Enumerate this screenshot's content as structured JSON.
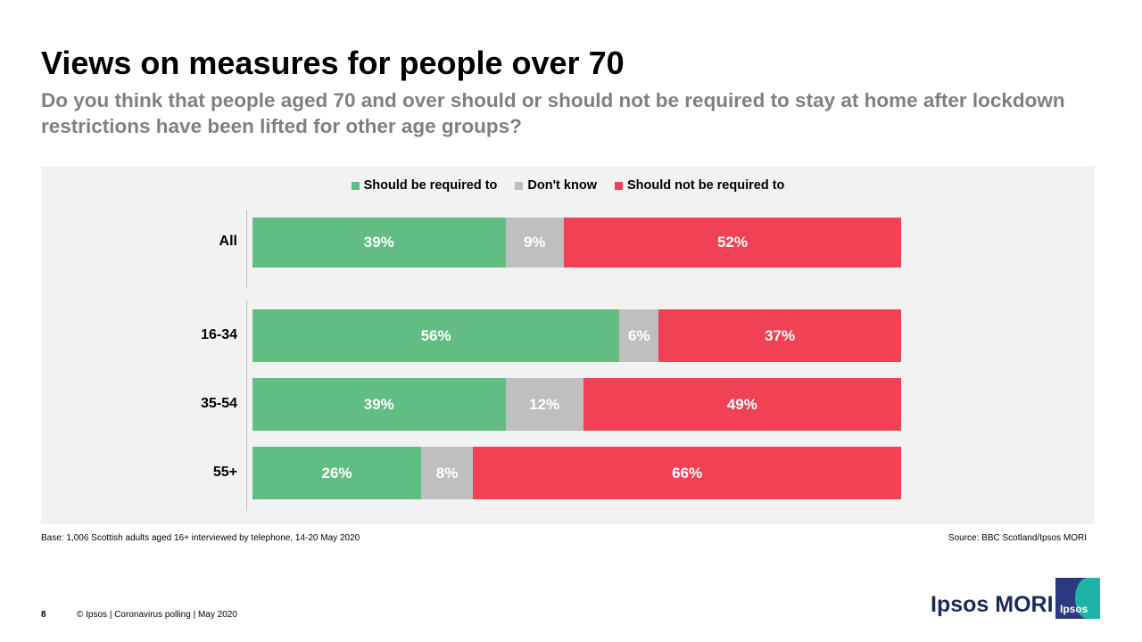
{
  "header": {
    "title": "Views on measures for people over 70",
    "subtitle": "Do you think that people aged 70 and over should or should not be required to stay at home after lockdown restrictions have been lifted for other age groups?"
  },
  "chart_data": {
    "type": "bar",
    "orientation": "horizontal-stacked-100",
    "categories": [
      "All",
      "16-34",
      "35-54",
      "55+"
    ],
    "series": [
      {
        "name": "Should be required to",
        "color": "#62bd83",
        "values": [
          39,
          56,
          39,
          26
        ],
        "labels": [
          "39%",
          "56%",
          "39%",
          "26%"
        ]
      },
      {
        "name": "Don't know",
        "color": "#bfbfbf",
        "values": [
          9,
          6,
          12,
          8
        ],
        "labels": [
          "9%",
          "6%",
          "12%",
          "8%"
        ]
      },
      {
        "name": "Should not be required to",
        "color": "#f04155",
        "values": [
          52,
          37,
          49,
          66
        ],
        "labels": [
          "52%",
          "37%",
          "49%",
          "66%"
        ]
      }
    ],
    "legend_position": "top-center",
    "xlim": [
      0,
      100
    ]
  },
  "footnotes": {
    "base": "Base: 1,006 Scottish adults aged 16+ interviewed by telephone, 14-20 May 2020",
    "source": "Source: BBC Scotland/Ipsos MORI"
  },
  "footer": {
    "page_number": "8",
    "copyright": "© Ipsos | Coronavirus polling | May 2020",
    "brand": "Ipsos MORI",
    "logo_text": "Ipsos"
  }
}
